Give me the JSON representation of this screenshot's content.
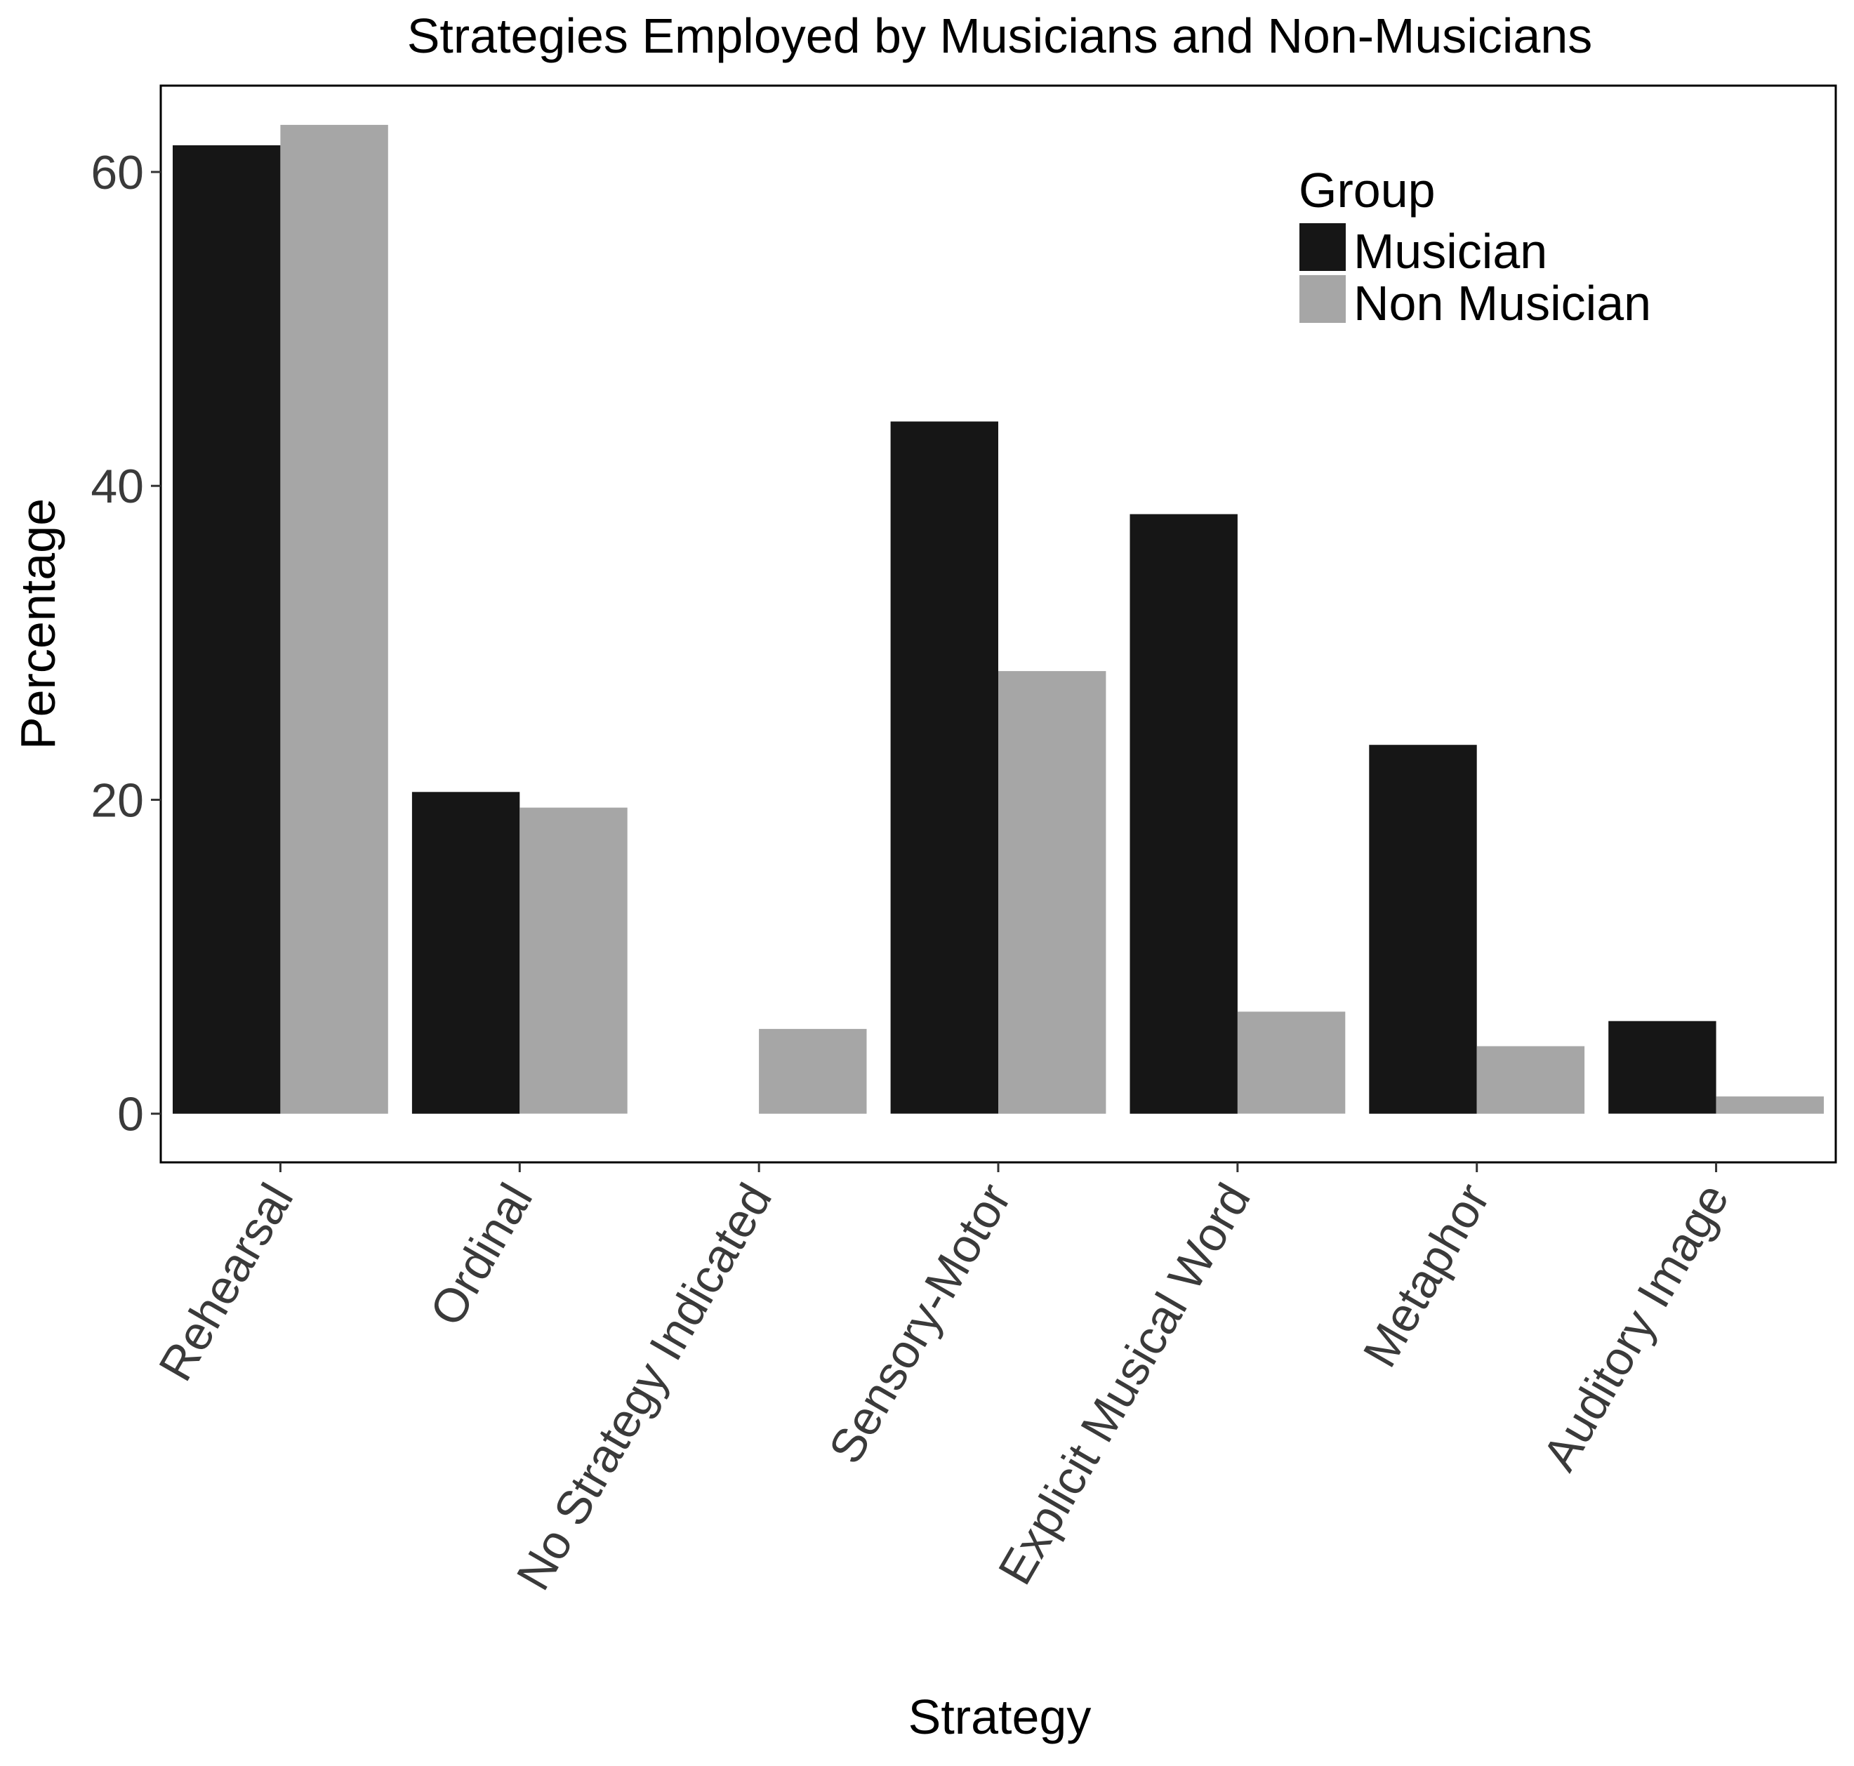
{
  "chart_data": {
    "type": "bar",
    "title": "Strategies Employed by Musicians and Non-Musicians",
    "xlabel": "Strategy",
    "ylabel": "Percentage",
    "categories": [
      "Rehearsal",
      "Ordinal",
      "No Strategy Indicated",
      "Sensory-Motor",
      "Explicit Musical Word",
      "Metaphor",
      "Auditory Image"
    ],
    "series": [
      {
        "name": "Musician",
        "color": "#161616",
        "values": [
          61.7,
          20.5,
          0,
          44.1,
          38.2,
          23.5,
          5.9
        ]
      },
      {
        "name": "Non Musician",
        "color": "#a6a6a6",
        "values": [
          63.0,
          19.5,
          5.4,
          28.2,
          6.5,
          4.3,
          1.1
        ]
      }
    ],
    "ylim": [
      -3.1,
      65.5
    ],
    "yticks": [
      0,
      20,
      40,
      60
    ],
    "grid": false,
    "legend": {
      "title": "Group",
      "position": "top-right"
    }
  }
}
